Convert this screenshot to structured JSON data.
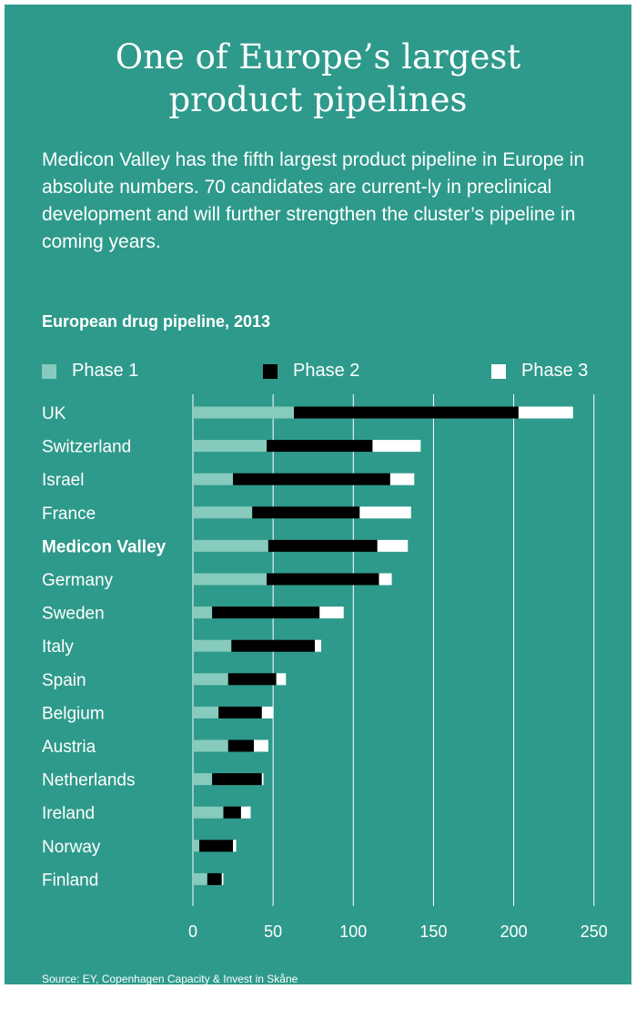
{
  "title_line1": "One of Europe’s largest",
  "title_line2": "product pipelines",
  "intro": "Medicon Valley has the fifth largest product pipeline in Europe in absolute numbers. 70 candidates are current-ly in preclinical development and will further strengthen the cluster’s pipeline in coming years.",
  "source": "Source: EY, Copenhagen Capacity & Invest in Skåne",
  "colors": {
    "background": "#2e9a8b",
    "phase1": "#86cbbd",
    "phase2": "#000000",
    "phase3": "#ffffff",
    "text": "#ffffff"
  },
  "chart_data": {
    "type": "bar",
    "orientation": "horizontal",
    "stacked": true,
    "title": "European drug pipeline, 2013",
    "categories": [
      "UK",
      "Switzerland",
      "Israel",
      "France",
      "Medicon Valley",
      "Germany",
      "Sweden",
      "Italy",
      "Spain",
      "Belgium",
      "Austria",
      "Netherlands",
      "Ireland",
      "Norway",
      "Finland"
    ],
    "highlight_category": "Medicon Valley",
    "series": [
      {
        "name": "Phase 1",
        "values": [
          63,
          46,
          25,
          37,
          47,
          46,
          12,
          24,
          22,
          16,
          22,
          12,
          19,
          4,
          9
        ]
      },
      {
        "name": "Phase 2",
        "values": [
          140,
          66,
          98,
          67,
          68,
          70,
          67,
          52,
          30,
          27,
          16,
          31,
          11,
          21,
          9
        ]
      },
      {
        "name": "Phase 3",
        "values": [
          34,
          30,
          15,
          32,
          19,
          8,
          15,
          4,
          6,
          7,
          9,
          1,
          6,
          2,
          1
        ]
      }
    ],
    "x_ticks": [
      0,
      50,
      100,
      150,
      200,
      250
    ],
    "xlim": [
      0,
      250
    ],
    "grid": true,
    "legend": "top"
  }
}
